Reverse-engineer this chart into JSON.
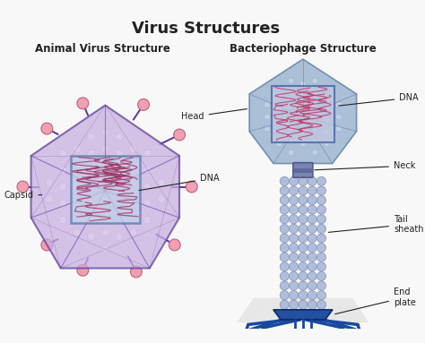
{
  "title": "Virus Structures",
  "subtitle_left": "Animal Virus Structure",
  "subtitle_right": "Bacteriophage Structure",
  "bg_color": "#f8f8f8",
  "title_fontsize": 13,
  "subtitle_fontsize": 8.5,
  "label_fontsize": 7,
  "capsid_color": "#c8b0e0",
  "capsid_edge_color": "#6040a0",
  "capsid_inner_color": "#d8c8ec",
  "dna_box_color": "#5878a8",
  "dna_box_face": "#b8c8e8",
  "dna_content_color": "#a03060",
  "spike_color": "#6040a0",
  "spike_ball_color": "#f0a0b0",
  "spike_ball_edge": "#c06080",
  "phage_head_color": "#9ab4d0",
  "phage_head_edge": "#6080a8",
  "phage_head_inner": "#b8cce0",
  "phage_neck_color": "#7080b0",
  "phage_neck_dark": "#505888",
  "phage_tail_bead_color": "#a8b8d8",
  "phage_tail_bead_edge": "#7888b0",
  "phage_leg_color": "#1848a0",
  "phage_leg_fill": "#2060c0",
  "phage_foot_color": "#80a8d0",
  "phage_dna_color": "#c03868",
  "annotation_color": "#222222",
  "shadow_color": "#d8d8d8"
}
